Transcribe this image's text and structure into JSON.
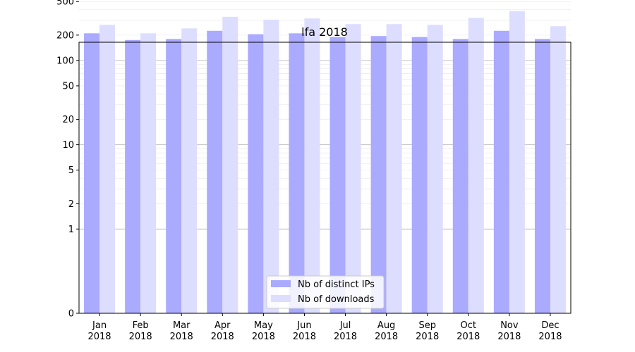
{
  "chart_data": {
    "type": "bar",
    "title": "lfa 2018",
    "xlabel": "",
    "ylabel": "",
    "y_scale": "symlog",
    "ylim": [
      0,
      1000
    ],
    "y_ticks": [
      0,
      1,
      2,
      5,
      10,
      20,
      50,
      100,
      200,
      500,
      1000
    ],
    "grid": true,
    "legend_position": "bottom-center",
    "categories": [
      [
        "Jan",
        "2018"
      ],
      [
        "Feb",
        "2018"
      ],
      [
        "Mar",
        "2018"
      ],
      [
        "Apr",
        "2018"
      ],
      [
        "May",
        "2018"
      ],
      [
        "Jun",
        "2018"
      ],
      [
        "Jul",
        "2018"
      ],
      [
        "Aug",
        "2018"
      ],
      [
        "Sep",
        "2018"
      ],
      [
        "Oct",
        "2018"
      ],
      [
        "Nov",
        "2018"
      ],
      [
        "Dec",
        "2018"
      ]
    ],
    "series": [
      {
        "name": "Nb of distinct IPs",
        "color": "#aaaaff",
        "values": [
          210,
          175,
          180,
          225,
          205,
          210,
          190,
          195,
          190,
          180,
          225,
          180
        ]
      },
      {
        "name": "Nb of downloads",
        "color": "#ddddff",
        "values": [
          265,
          210,
          240,
          330,
          305,
          315,
          270,
          270,
          265,
          320,
          385,
          255
        ]
      }
    ]
  }
}
